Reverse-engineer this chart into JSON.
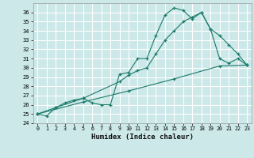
{
  "xlabel": "Humidex (Indice chaleur)",
  "xlim": [
    -0.5,
    23.5
  ],
  "ylim": [
    24,
    37
  ],
  "yticks": [
    24,
    25,
    26,
    27,
    28,
    29,
    30,
    31,
    32,
    33,
    34,
    35,
    36
  ],
  "xticks": [
    0,
    1,
    2,
    3,
    4,
    5,
    6,
    7,
    8,
    9,
    10,
    11,
    12,
    13,
    14,
    15,
    16,
    17,
    18,
    19,
    20,
    21,
    22,
    23
  ],
  "bg_color": "#cce8e8",
  "grid_color": "#ffffff",
  "line_color": "#1a7a6a",
  "lines": [
    {
      "x": [
        0,
        1,
        2,
        3,
        4,
        5,
        6,
        7,
        8,
        9,
        10,
        11,
        12,
        13,
        14,
        15,
        16,
        17,
        18,
        19,
        20,
        21,
        22,
        23
      ],
      "y": [
        25.0,
        24.8,
        25.7,
        26.2,
        26.5,
        26.7,
        26.2,
        26.0,
        26.0,
        29.3,
        29.5,
        31.0,
        31.0,
        33.5,
        35.7,
        36.5,
        36.2,
        35.3,
        36.0,
        34.2,
        31.0,
        30.5,
        31.0,
        30.3
      ]
    },
    {
      "x": [
        0,
        2,
        5,
        9,
        10,
        11,
        12,
        13,
        14,
        15,
        16,
        17,
        18,
        19,
        20,
        21,
        22,
        23
      ],
      "y": [
        25.0,
        25.7,
        26.7,
        28.5,
        29.2,
        29.7,
        30.0,
        31.5,
        33.0,
        34.0,
        35.0,
        35.5,
        36.0,
        34.2,
        33.5,
        32.5,
        31.5,
        30.3
      ]
    },
    {
      "x": [
        0,
        5,
        10,
        15,
        20,
        23
      ],
      "y": [
        25.0,
        26.3,
        27.5,
        28.8,
        30.2,
        30.3
      ]
    }
  ]
}
